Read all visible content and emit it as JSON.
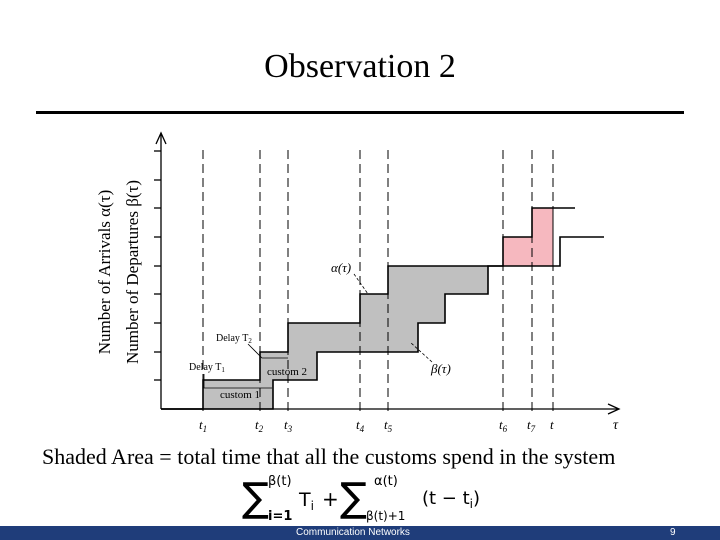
{
  "slide": {
    "title": "Observation 2",
    "caption": "Shaded Area = total time that all the customs spend in the system",
    "footer": "Communication Networks",
    "page_number": "9"
  },
  "diagram": {
    "y_axis_labels": [
      "Number of Arrivals α(τ)",
      "Number of Departures β(τ)"
    ],
    "x_axis_label": "τ",
    "time_labels": [
      "t",
      "t",
      "t",
      "t",
      "t",
      "t",
      "t",
      "t"
    ],
    "time_subscripts": [
      "1",
      "2",
      "3",
      "4",
      "5",
      "6",
      "7",
      ""
    ],
    "alpha_label": "α(τ)",
    "beta_label": "β(τ)",
    "delay_t1": "Delay T",
    "delay_t1_sub": "1",
    "delay_t2": "Delay T",
    "delay_t2_sub": "2",
    "custom_1": "custom 1",
    "custom_2": "custom 2",
    "shade_color": "#c0c0c0",
    "pink_color": "#f6b8bf"
  },
  "formula": {
    "sum_main": "∑",
    "upper1": "β(t)",
    "lower1": "i=1",
    "term1": "T",
    "term1_sub": "i",
    "plus": "+",
    "sum2": "∑",
    "upper2": "α(t)",
    "lower2": "β(t)+1",
    "term2_open": "(t − t",
    "term2_sub": "i",
    "term2_close": ")"
  }
}
